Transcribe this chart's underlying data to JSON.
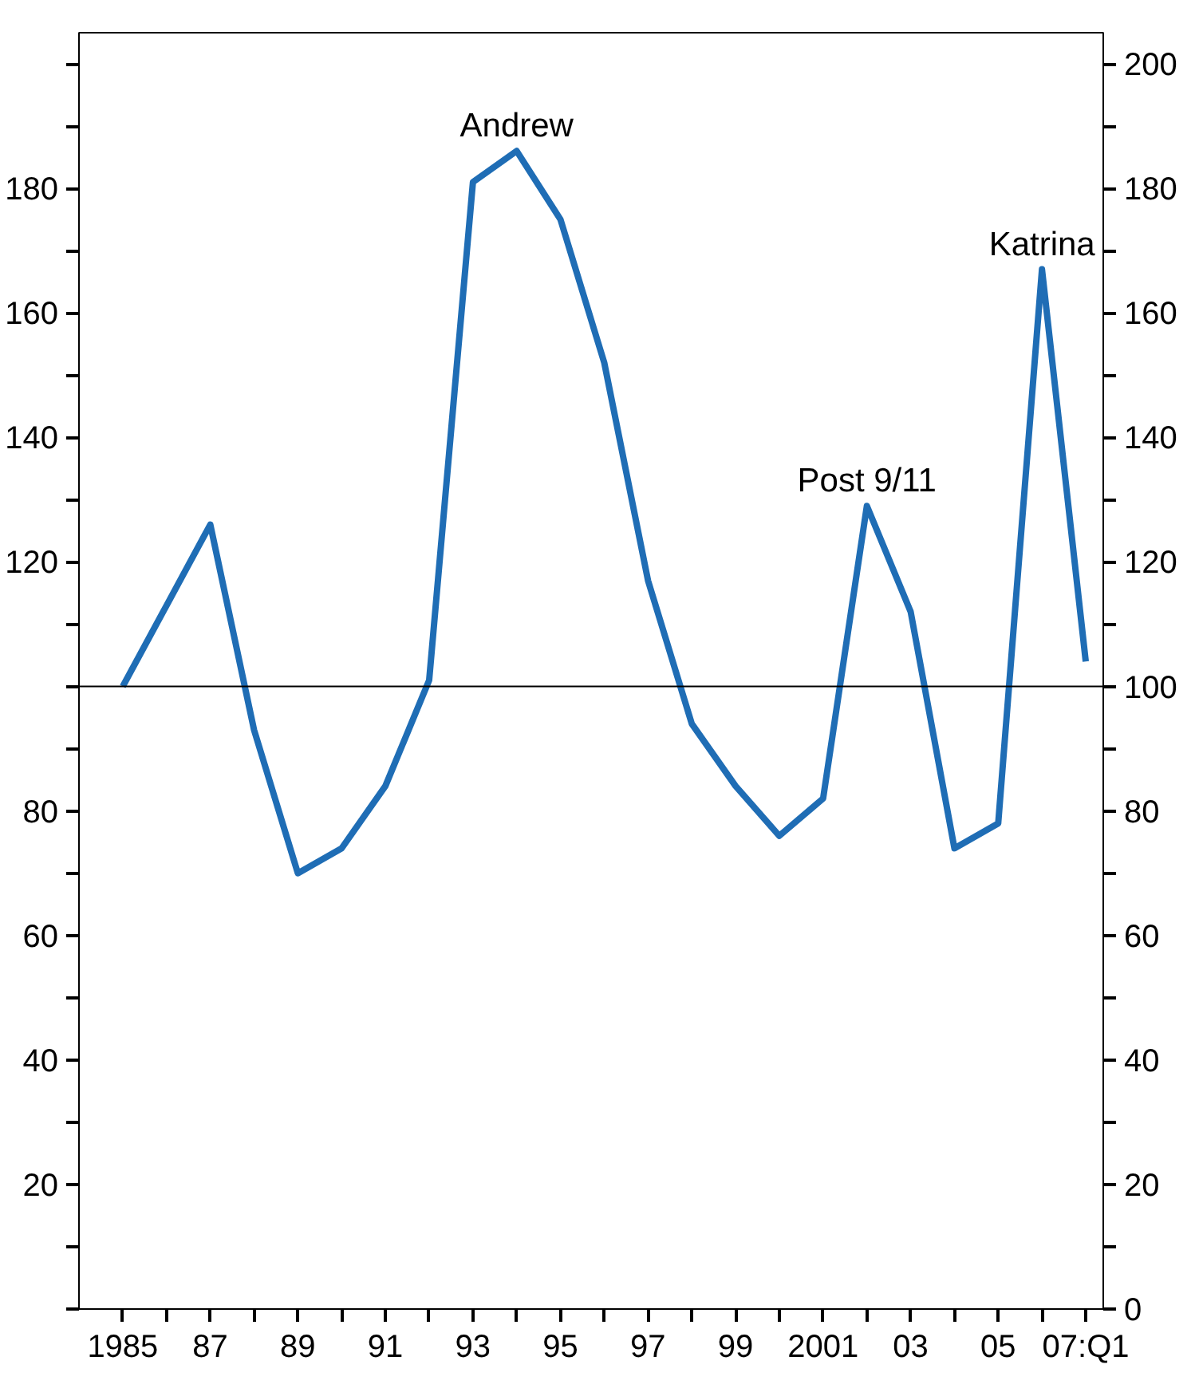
{
  "chart_data": {
    "type": "line",
    "x": [
      1985,
      1986,
      1987,
      1988,
      1989,
      1990,
      1991,
      1992,
      1993,
      1994,
      1995,
      1996,
      1997,
      1998,
      1999,
      2000,
      2001,
      2002,
      2003,
      2004,
      2005,
      2006,
      2007
    ],
    "series": [
      {
        "color": "#1f6db5",
        "values": [
          100,
          113,
          126,
          93,
          70,
          74,
          84,
          101,
          181,
          186,
          175,
          152,
          117,
          94,
          84,
          76,
          82,
          129,
          112,
          74,
          78,
          167,
          104
        ]
      }
    ],
    "xlim": [
      1984,
      2007.4
    ],
    "xticks": [
      1985,
      {
        "value": 1986,
        "label": null
      },
      {
        "value": 1987,
        "label": "87"
      },
      {
        "value": 1988,
        "label": null
      },
      {
        "value": 1989,
        "label": "89"
      },
      {
        "value": 1990,
        "label": null
      },
      {
        "value": 1991,
        "label": "91"
      },
      {
        "value": 1992,
        "label": null
      },
      {
        "value": 1993,
        "label": "93"
      },
      {
        "value": 1994,
        "label": null
      },
      {
        "value": 1995,
        "label": "95"
      },
      {
        "value": 1996,
        "label": null
      },
      {
        "value": 1997,
        "label": "97"
      },
      {
        "value": 1998,
        "label": null
      },
      {
        "value": 1999,
        "label": "99"
      },
      {
        "value": 2000,
        "label": null
      },
      2001,
      {
        "value": 2002,
        "label": null
      },
      {
        "value": 2003,
        "label": "03"
      },
      {
        "value": 2004,
        "label": null
      },
      {
        "value": 2005,
        "label": "05"
      },
      {
        "value": 2006,
        "label": null
      },
      {
        "value": 2007,
        "label": "07:Q1"
      }
    ],
    "ylim": [
      0,
      205
    ],
    "yticks": [
      {
        "value": 0,
        "label": null
      },
      {
        "value": 10,
        "label": null
      },
      20,
      {
        "value": 30,
        "label": null
      },
      40,
      {
        "value": 50,
        "label": null
      },
      60,
      {
        "value": 70,
        "label": null
      },
      80,
      {
        "value": 90,
        "label": null
      },
      {
        "value": 100,
        "label": null
      },
      {
        "value": 110,
        "label": null
      },
      120,
      {
        "value": 130,
        "label": null
      },
      140,
      {
        "value": 150,
        "label": null
      },
      160,
      {
        "value": 170,
        "label": null
      },
      180,
      {
        "value": 190,
        "label": null
      },
      {
        "value": 200,
        "label": null
      }
    ],
    "y2lim": [
      0,
      205
    ],
    "y2ticks": [
      0,
      {
        "value": 10,
        "label": null
      },
      20,
      {
        "value": 30,
        "label": null
      },
      40,
      {
        "value": 50,
        "label": null
      },
      60,
      {
        "value": 70,
        "label": null
      },
      80,
      {
        "value": 90,
        "label": null
      },
      100,
      {
        "value": 110,
        "label": null
      },
      120,
      {
        "value": 130,
        "label": null
      },
      140,
      {
        "value": 150,
        "label": null
      },
      160,
      {
        "value": 170,
        "label": null
      },
      180,
      {
        "value": 190,
        "label": null
      },
      200
    ],
    "ref_lines": [
      {
        "axis": "y",
        "value": 100,
        "color": "#000000"
      }
    ],
    "annotations": [
      {
        "text": "Andrew",
        "x": 1994,
        "y": 186
      },
      {
        "text": "Post 9/11",
        "x": 2002,
        "y": 129
      },
      {
        "text": "Katrina",
        "x": 2006,
        "y": 167
      }
    ],
    "grid": false,
    "marker": "none",
    "line_style": "solid"
  }
}
